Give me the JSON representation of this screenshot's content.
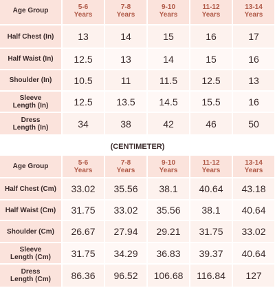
{
  "tables": [
    {
      "header": [
        "Age Group",
        "5-6\nYears",
        "7-8\nYears",
        "9-10\nYears",
        "11-12\nYears",
        "13-14\nYears"
      ],
      "rows": [
        [
          "Half Chest (In)",
          "13",
          "14",
          "15",
          "16",
          "17"
        ],
        [
          "Half Waist (In)",
          "12.5",
          "13",
          "14",
          "15",
          "16"
        ],
        [
          "Shoulder (In)",
          "10.5",
          "11",
          "11.5",
          "12.5",
          "13"
        ],
        [
          "Sleeve\nLength (In)",
          "12.5",
          "13.5",
          "14.5",
          "15.5",
          "16"
        ],
        [
          "Dress\nLength (In)",
          "34",
          "38",
          "42",
          "46",
          "50"
        ]
      ]
    },
    {
      "title": "(CENTIMETER)",
      "header": [
        "Age Group",
        "5-6\nYears",
        "7-8\nYears",
        "9-10\nYears",
        "11-12\nYears",
        "13-14\nYears"
      ],
      "rows": [
        [
          "Half Chest (Cm)",
          "33.02",
          "35.56",
          "38.1",
          "40.64",
          "43.18"
        ],
        [
          "Half Waist (Cm)",
          "31.75",
          "33.02",
          "35.56",
          "38.1",
          "40.64"
        ],
        [
          "Shoulder (Cm)",
          "26.67",
          "27.94",
          "29.21",
          "31.75",
          "33.02"
        ],
        [
          "Sleeve\nLength (Cm)",
          "31.75",
          "34.29",
          "36.83",
          "39.37",
          "40.64"
        ],
        [
          "Dress\nLength (Cm)",
          "86.36",
          "96.52",
          "106.68",
          "116.84",
          "127"
        ]
      ]
    }
  ]
}
